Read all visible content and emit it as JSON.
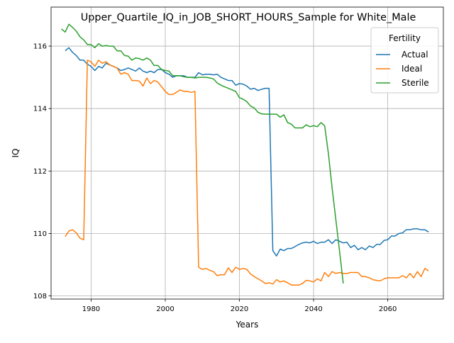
{
  "chart_data": {
    "type": "line",
    "title": "Upper_Quartile_IQ_in_JOB_SHORT_HOURS_Sample for White_Male",
    "xlabel": "Years",
    "ylabel": "IQ",
    "xlim": [
      1969.2,
      2075
    ],
    "ylim": [
      107.9,
      117.25
    ],
    "x_ticks": [
      1980,
      2000,
      2020,
      2040,
      2060
    ],
    "y_ticks": [
      108,
      110,
      112,
      114,
      116
    ],
    "grid": true,
    "legend": {
      "title": "Fertility",
      "position": "top-right"
    },
    "series": [
      {
        "name": "Actual",
        "color": "#1f77b4",
        "x_start": 1973,
        "values": [
          115.85,
          115.95,
          115.8,
          115.7,
          115.55,
          115.55,
          115.42,
          115.35,
          115.22,
          115.35,
          115.3,
          115.45,
          115.4,
          115.35,
          115.3,
          115.22,
          115.25,
          115.3,
          115.25,
          115.2,
          115.3,
          115.2,
          115.15,
          115.2,
          115.15,
          115.25,
          115.25,
          115.15,
          115.1,
          115.0,
          115.05,
          115.05,
          115.05,
          115.0,
          115.0,
          115.0,
          115.15,
          115.08,
          115.1,
          115.1,
          115.08,
          115.1,
          115.0,
          114.95,
          114.9,
          114.9,
          114.75,
          114.8,
          114.78,
          114.72,
          114.62,
          114.65,
          114.58,
          114.62,
          114.65,
          114.65,
          109.45,
          109.28,
          109.5,
          109.45,
          109.52,
          109.52,
          109.58,
          109.65,
          109.7,
          109.72,
          109.7,
          109.75,
          109.68,
          109.72,
          109.72,
          109.8,
          109.68,
          109.8,
          109.75,
          109.7,
          109.72,
          109.55,
          109.62,
          109.48,
          109.55,
          109.48,
          109.6,
          109.55,
          109.65,
          109.65,
          109.78,
          109.8,
          109.92,
          109.92,
          110.0,
          110.02,
          110.12,
          110.12,
          110.15,
          110.15,
          110.12,
          110.12,
          110.05
        ]
      },
      {
        "name": "Ideal",
        "color": "#ff7f0e",
        "x_start": 1973,
        "values": [
          109.9,
          110.08,
          110.12,
          110.02,
          109.85,
          109.8,
          115.55,
          115.5,
          115.35,
          115.55,
          115.45,
          115.5,
          115.4,
          115.35,
          115.3,
          115.1,
          115.15,
          115.1,
          114.9,
          114.9,
          114.88,
          114.72,
          114.98,
          114.8,
          114.9,
          114.85,
          114.7,
          114.55,
          114.45,
          114.45,
          114.52,
          114.6,
          114.55,
          114.55,
          114.52,
          114.55,
          108.92,
          108.85,
          108.88,
          108.82,
          108.78,
          108.65,
          108.68,
          108.68,
          108.9,
          108.75,
          108.92,
          108.85,
          108.88,
          108.85,
          108.7,
          108.62,
          108.55,
          108.48,
          108.4,
          108.42,
          108.38,
          108.52,
          108.45,
          108.48,
          108.42,
          108.35,
          108.35,
          108.35,
          108.4,
          108.5,
          108.48,
          108.45,
          108.55,
          108.48,
          108.75,
          108.62,
          108.78,
          108.72,
          108.75,
          108.72,
          108.72,
          108.75,
          108.75,
          108.75,
          108.62,
          108.62,
          108.58,
          108.52,
          108.5,
          108.48,
          108.55,
          108.58,
          108.58,
          108.58,
          108.58,
          108.65,
          108.58,
          108.72,
          108.58,
          108.78,
          108.62,
          108.88,
          108.8
        ]
      },
      {
        "name": "Sterile",
        "color": "#2ca02c",
        "x_start": 1972,
        "values": [
          116.55,
          116.45,
          116.7,
          116.6,
          116.48,
          116.3,
          116.2,
          116.05,
          116.05,
          115.95,
          116.08,
          116.0,
          116.02,
          116.0,
          116.0,
          115.85,
          115.85,
          115.7,
          115.68,
          115.55,
          115.62,
          115.6,
          115.55,
          115.62,
          115.55,
          115.38,
          115.38,
          115.25,
          115.22,
          115.2,
          115.05,
          115.05,
          115.05,
          115.02,
          115.0,
          115.0,
          114.98,
          115.0,
          115.0,
          115.0,
          114.98,
          114.95,
          114.82,
          114.75,
          114.7,
          114.65,
          114.6,
          114.55,
          114.35,
          114.3,
          114.22,
          114.08,
          114.02,
          113.88,
          113.83,
          113.82,
          113.82,
          113.82,
          113.82,
          113.72,
          113.8,
          113.55,
          113.5,
          113.38,
          113.38,
          113.38,
          113.48,
          113.42,
          113.45,
          113.42,
          113.55,
          113.45,
          112.55,
          111.45,
          110.45,
          109.45,
          108.4
        ]
      }
    ]
  }
}
